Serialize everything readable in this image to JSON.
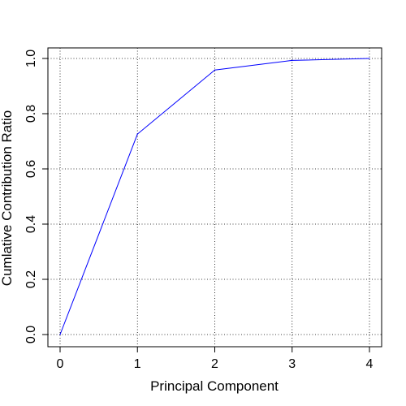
{
  "chart_data": {
    "type": "line",
    "title": "",
    "xlabel": "Principal Component",
    "ylabel": "Cumlative Contribution Ratio",
    "x": [
      0,
      1,
      2,
      3,
      4
    ],
    "series": [
      {
        "values": [
          0.0,
          0.726,
          0.958,
          0.993,
          1.0
        ]
      }
    ],
    "xlim": [
      0,
      4
    ],
    "ylim": [
      0,
      1
    ],
    "x_ticks": [
      "0",
      "1",
      "2",
      "3",
      "4"
    ],
    "y_ticks": [
      "0.0",
      "0.2",
      "0.4",
      "0.6",
      "0.8",
      "1.0"
    ],
    "grid": true,
    "grid_style": "dotted",
    "line_color": "#0000ff",
    "legend": "none"
  }
}
